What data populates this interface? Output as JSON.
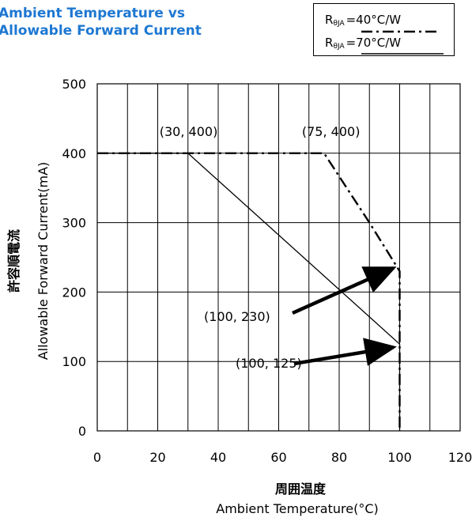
{
  "chart_data": {
    "type": "line",
    "title_lines": [
      "Ambient Temperature vs",
      "Allowable Forward Current"
    ],
    "xlabel_jp": "周囲温度",
    "xlabel": "Ambient Temperature(°C)",
    "ylabel_jp": "許容順電流",
    "ylabel": "Allowable Forward Current(mA)",
    "xlim": [
      0,
      120
    ],
    "ylim": [
      0,
      500
    ],
    "xticks": [
      0,
      20,
      40,
      60,
      80,
      100,
      120
    ],
    "yticks": [
      0,
      100,
      200,
      300,
      400,
      500
    ],
    "grid": true,
    "legend": {
      "placement": "top-right",
      "entries": [
        {
          "symbol": "R",
          "subscript": "θJA",
          "value": "=40°C/W",
          "style": "dash-dot"
        },
        {
          "symbol": "R",
          "subscript": "θJA",
          "value": "=70°C/W",
          "style": "solid"
        }
      ]
    },
    "series": [
      {
        "name": "RθJA=70°C/W",
        "style": "solid",
        "x": [
          0,
          30,
          100,
          100
        ],
        "y": [
          400,
          400,
          125,
          0
        ]
      },
      {
        "name": "RθJA=40°C/W",
        "style": "dash-dot",
        "x": [
          0,
          75,
          90,
          100,
          100
        ],
        "y": [
          400,
          400,
          300,
          230,
          0
        ]
      }
    ],
    "annotations": [
      {
        "text": "(30, 400)",
        "x": 30,
        "y": 400
      },
      {
        "text": "(75, 400)",
        "x": 75,
        "y": 400
      },
      {
        "text": "(100, 230)",
        "x": 100,
        "y": 230,
        "arrow": true
      },
      {
        "text": "(100, 125)",
        "x": 100,
        "y": 125,
        "arrow": true
      }
    ]
  }
}
